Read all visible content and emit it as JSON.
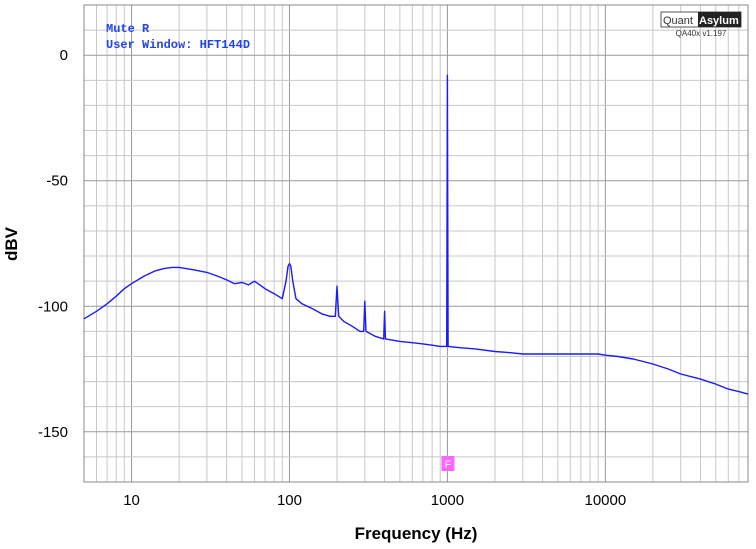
{
  "chart_data": {
    "type": "line",
    "xlabel": "Frequency (Hz)",
    "ylabel": "dBV",
    "x_scale": "log",
    "xlim": [
      5,
      80000
    ],
    "ylim": [
      -170,
      20
    ],
    "x_ticks": [
      10,
      100,
      1000,
      10000
    ],
    "x_tick_labels": [
      "10",
      "100",
      "1000",
      "10000"
    ],
    "y_ticks": [
      0,
      -50,
      -100,
      -150
    ],
    "y_tick_labels": [
      "0",
      "-50",
      "-100",
      "-150"
    ],
    "grid": true,
    "annotations": [
      "Mute R",
      "User Window: HFT144D"
    ],
    "marker_label": "F",
    "marker_x": 1000,
    "colors": {
      "series": "#1a1aff",
      "annotation": "#2244ee",
      "marker": "#ff66ff",
      "grid": "#c8c8c8"
    },
    "series": [
      {
        "color": "#1a1aff",
        "x": [
          5,
          6,
          7,
          8,
          9,
          10,
          12,
          14,
          16,
          18,
          20,
          25,
          30,
          35,
          40,
          45,
          50,
          55,
          60,
          65,
          70,
          80,
          90,
          95,
          98,
          100,
          102,
          105,
          110,
          120,
          140,
          160,
          180,
          195,
          200,
          205,
          220,
          250,
          280,
          295,
          300,
          305,
          350,
          395,
          400,
          405,
          450,
          500,
          600,
          700,
          800,
          900,
          990,
          1000,
          1010,
          1200,
          1500,
          2000,
          2500,
          3000,
          4000,
          5000,
          6000,
          7000,
          8000,
          9000,
          10000,
          12000,
          15000,
          20000,
          25000,
          30000,
          40000,
          50000,
          60000,
          70000,
          80000
        ],
        "y": [
          -105,
          -102,
          -99,
          -96,
          -93,
          -91,
          -88,
          -86,
          -85,
          -84.5,
          -84.5,
          -85.5,
          -86.5,
          -88,
          -89.5,
          -91,
          -90.5,
          -91.5,
          -90,
          -91.5,
          -93,
          -95,
          -97,
          -90,
          -84,
          -83,
          -84,
          -90,
          -97,
          -99,
          -101,
          -103,
          -104,
          -104,
          -92,
          -104,
          -106,
          -108,
          -110,
          -110,
          -98,
          -110,
          -112,
          -113,
          -102,
          -113,
          -113.5,
          -114,
          -114.5,
          -115,
          -115.5,
          -116,
          -116,
          -8,
          -116,
          -116.5,
          -117,
          -118,
          -118.5,
          -119,
          -119,
          -119,
          -119,
          -119,
          -119,
          -119,
          -119.5,
          -120,
          -121,
          -123,
          -125,
          -127,
          -129,
          -131,
          -133,
          -134,
          -135
        ]
      }
    ]
  },
  "branding": {
    "logo_left": "Quant",
    "logo_right": "Asylum",
    "version": "QA40x v1.197"
  }
}
